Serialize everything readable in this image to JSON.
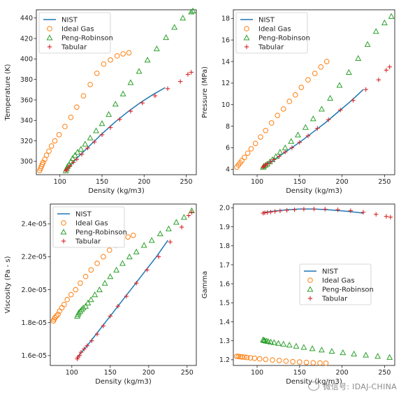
{
  "colors": {
    "nist": "#1f77b4",
    "ideal": "#ff7f0e",
    "pr": "#2ca02c",
    "tab": "#d62728"
  },
  "legend_labels": [
    "NIST",
    "Ideal Gas",
    "Peng-Robinson",
    "Tabular"
  ],
  "watermark": "微信号: IDAJ-CHINA",
  "chart_data": [
    {
      "type": "line",
      "xlabel": "Density (kg/m3)",
      "ylabel": "Temperature (K)",
      "xlim": [
        72,
        262
      ],
      "ylim": [
        287,
        448
      ],
      "xticks": [
        100,
        150,
        200,
        250
      ],
      "yticks": [
        300,
        320,
        340,
        360,
        380,
        400,
        420,
        440
      ],
      "ytick_labels": [
        "300",
        "320",
        "340",
        "360",
        "380",
        "400",
        "420",
        "440"
      ],
      "legend_position": "upper-left",
      "series": [
        {
          "name": "NIST",
          "kind": "line",
          "x": [
            107,
            120,
            135,
            150,
            165,
            180,
            195,
            210,
            225
          ],
          "y": [
            291,
            303,
            315,
            327,
            338,
            348,
            357,
            365,
            372
          ]
        },
        {
          "name": "Ideal Gas",
          "kind": "circle",
          "x": [
            76,
            77,
            78,
            79,
            80,
            82,
            84,
            87,
            90,
            94,
            99,
            106,
            113,
            120,
            128,
            136,
            144,
            152,
            160,
            168,
            175,
            182
          ],
          "y": [
            291,
            293,
            295,
            297,
            299,
            302,
            306,
            310,
            315,
            320,
            326,
            334,
            343,
            353,
            364,
            375,
            386,
            395,
            399,
            403,
            405,
            406
          ]
        },
        {
          "name": "Peng-Robinson",
          "kind": "triangle",
          "x": [
            107,
            108,
            109,
            111,
            113,
            115,
            118,
            121,
            125,
            130,
            136,
            143,
            150,
            158,
            166,
            175,
            184,
            194,
            204,
            215,
            226,
            236,
            246,
            256,
            258
          ],
          "y": [
            291,
            293,
            295,
            297,
            300,
            303,
            306,
            309,
            312,
            317,
            323,
            330,
            337,
            346,
            356,
            366,
            377,
            388,
            399,
            410,
            421,
            431,
            440,
            446,
            447
          ]
        },
        {
          "name": "Tabular",
          "kind": "plus",
          "x": [
            107,
            108,
            110,
            112,
            116,
            120,
            126,
            133,
            141,
            150,
            160,
            171,
            184,
            198,
            213,
            228,
            243,
            252,
            256
          ],
          "y": [
            291,
            292,
            294,
            296,
            299,
            302,
            307,
            313,
            319,
            326,
            333,
            341,
            349,
            357,
            364,
            371,
            378,
            385,
            387
          ]
        }
      ]
    },
    {
      "type": "line",
      "xlabel": "Density (kg/m3)",
      "ylabel": "Pressure (MPa)",
      "xlim": [
        72,
        262
      ],
      "ylim": [
        3.5,
        18.8
      ],
      "xticks": [
        100,
        150,
        200,
        250
      ],
      "yticks": [
        4,
        6,
        8,
        10,
        12,
        14,
        16,
        18
      ],
      "ytick_labels": [
        "4",
        "6",
        "8",
        "10",
        "12",
        "14",
        "16",
        "18"
      ],
      "legend_position": "upper-left",
      "series": [
        {
          "name": "NIST",
          "kind": "line",
          "x": [
            107,
            120,
            135,
            150,
            165,
            180,
            195,
            210,
            225
          ],
          "y": [
            4.2,
            4.9,
            5.7,
            6.5,
            7.4,
            8.3,
            9.3,
            10.3,
            11.4
          ]
        },
        {
          "name": "Ideal Gas",
          "kind": "circle",
          "x": [
            76,
            78,
            80,
            82,
            85,
            89,
            93,
            98,
            104,
            110,
            117,
            124,
            131,
            138,
            145,
            152,
            160,
            168,
            175,
            182
          ],
          "y": [
            4.2,
            4.4,
            4.6,
            4.8,
            5.1,
            5.5,
            5.9,
            6.4,
            7.0,
            7.6,
            8.3,
            9.0,
            9.6,
            10.3,
            10.9,
            11.6,
            12.3,
            12.9,
            13.5,
            14.0
          ]
        },
        {
          "name": "Peng-Robinson",
          "kind": "triangle",
          "x": [
            107,
            108,
            110,
            112,
            115,
            118,
            122,
            127,
            133,
            140,
            148,
            157,
            166,
            176,
            186,
            197,
            208,
            219,
            230,
            240,
            250,
            258
          ],
          "y": [
            4.2,
            4.3,
            4.4,
            4.5,
            4.7,
            4.9,
            5.2,
            5.6,
            6.0,
            6.6,
            7.2,
            7.9,
            8.7,
            9.6,
            10.6,
            11.8,
            13.0,
            14.3,
            15.6,
            16.8,
            17.6,
            18.2
          ]
        },
        {
          "name": "Tabular",
          "kind": "plus",
          "x": [
            107,
            108,
            110,
            112,
            116,
            120,
            126,
            133,
            141,
            150,
            160,
            171,
            184,
            198,
            213,
            228,
            243,
            252,
            256
          ],
          "y": [
            4.2,
            4.3,
            4.4,
            4.5,
            4.7,
            4.9,
            5.2,
            5.6,
            6.0,
            6.5,
            7.1,
            7.8,
            8.6,
            9.5,
            10.4,
            11.4,
            12.3,
            13.2,
            13.5
          ]
        }
      ]
    },
    {
      "type": "line",
      "xlabel": "Density (kg/m3)",
      "ylabel": "Viscosity (Pa - s)",
      "xlim": [
        72,
        262
      ],
      "ylim": [
        1.54e-05,
        2.52e-05
      ],
      "xticks": [
        100,
        150,
        200,
        250
      ],
      "yticks": [
        1.6e-05,
        1.8e-05,
        2e-05,
        2.2e-05,
        2.4e-05
      ],
      "ytick_labels": [
        "1.6e-05",
        "1.8e-05",
        "2.0e-05",
        "2.2e-05",
        "2.4e-05"
      ],
      "legend_position": "upper-left",
      "series": [
        {
          "name": "NIST",
          "kind": "line",
          "x": [
            107,
            120,
            135,
            150,
            165,
            180,
            195,
            210,
            225
          ],
          "y": [
            1.59e-05,
            1.66e-05,
            1.75e-05,
            1.84e-05,
            1.93e-05,
            2.02e-05,
            2.11e-05,
            2.2e-05,
            2.3e-05
          ]
        },
        {
          "name": "Ideal Gas",
          "kind": "circle",
          "x": [
            76,
            77,
            78,
            80,
            82,
            84,
            87,
            90,
            94,
            99,
            105,
            111,
            118,
            125,
            133,
            141,
            149,
            157,
            165,
            173,
            180
          ],
          "y": [
            1.81e-05,
            1.82e-05,
            1.83e-05,
            1.84e-05,
            1.85e-05,
            1.87e-05,
            1.89e-05,
            1.91e-05,
            1.94e-05,
            1.97e-05,
            2e-05,
            2.04e-05,
            2.08e-05,
            2.12e-05,
            2.16e-05,
            2.2e-05,
            2.24e-05,
            2.27e-05,
            2.3e-05,
            2.32e-05,
            2.33e-05
          ]
        },
        {
          "name": "Peng-Robinson",
          "kind": "triangle",
          "x": [
            107,
            108,
            109,
            111,
            113,
            115,
            118,
            121,
            125,
            130,
            136,
            143,
            150,
            158,
            166,
            175,
            184,
            194,
            204,
            215,
            226,
            236,
            246,
            256
          ],
          "y": [
            1.84e-05,
            1.85e-05,
            1.86e-05,
            1.87e-05,
            1.88e-05,
            1.89e-05,
            1.9e-05,
            1.92e-05,
            1.94e-05,
            1.97e-05,
            2e-05,
            2.04e-05,
            2.08e-05,
            2.12e-05,
            2.16e-05,
            2.2e-05,
            2.23e-05,
            2.27e-05,
            2.3e-05,
            2.34e-05,
            2.37e-05,
            2.41e-05,
            2.44e-05,
            2.48e-05
          ]
        },
        {
          "name": "Tabular",
          "kind": "plus",
          "x": [
            107,
            108,
            110,
            112,
            116,
            120,
            126,
            133,
            141,
            150,
            160,
            171,
            184,
            198,
            213,
            228,
            243,
            252,
            256
          ],
          "y": [
            1.58e-05,
            1.59e-05,
            1.6e-05,
            1.62e-05,
            1.64e-05,
            1.66e-05,
            1.69e-05,
            1.73e-05,
            1.78e-05,
            1.84e-05,
            1.9e-05,
            1.96e-05,
            2.04e-05,
            2.12e-05,
            2.2e-05,
            2.29e-05,
            2.38e-05,
            2.45e-05,
            2.47e-05
          ]
        }
      ]
    },
    {
      "type": "line",
      "xlabel": "Density (kg/m3)",
      "ylabel": "Gamma",
      "xlim": [
        72,
        262
      ],
      "ylim": [
        1.17,
        2.02
      ],
      "xticks": [
        100,
        150,
        200,
        250
      ],
      "yticks": [
        1.2,
        1.3,
        1.4,
        1.5,
        1.6,
        1.7,
        1.8,
        1.9,
        2.0
      ],
      "ytick_labels": [
        "1.2",
        "1.3",
        "1.4",
        "1.5",
        "1.6",
        "1.7",
        "1.8",
        "1.9",
        "2.0"
      ],
      "legend_position": "center-right",
      "series": [
        {
          "name": "NIST",
          "kind": "line",
          "x": [
            107,
            120,
            135,
            150,
            165,
            180,
            195,
            210,
            225
          ],
          "y": [
            1.975,
            1.983,
            1.99,
            1.994,
            1.994,
            1.991,
            1.986,
            1.98,
            1.972
          ]
        },
        {
          "name": "Ideal Gas",
          "kind": "circle",
          "x": [
            76,
            78,
            80,
            82,
            85,
            88,
            92,
            97,
            103,
            110,
            118,
            126,
            134,
            142,
            150,
            158,
            166,
            174,
            181
          ],
          "y": [
            1.218,
            1.217,
            1.216,
            1.215,
            1.214,
            1.212,
            1.21,
            1.208,
            1.205,
            1.202,
            1.199,
            1.196,
            1.193,
            1.19,
            1.188,
            1.186,
            1.184,
            1.183,
            1.182
          ]
        },
        {
          "name": "Peng-Robinson",
          "kind": "triangle",
          "x": [
            107,
            108,
            109,
            111,
            113,
            116,
            120,
            125,
            131,
            138,
            146,
            155,
            165,
            176,
            188,
            201,
            214,
            228,
            242,
            256
          ],
          "y": [
            1.305,
            1.303,
            1.301,
            1.299,
            1.297,
            1.294,
            1.291,
            1.287,
            1.283,
            1.278,
            1.272,
            1.266,
            1.259,
            1.252,
            1.245,
            1.238,
            1.231,
            1.225,
            1.219,
            1.213
          ]
        },
        {
          "name": "Tabular",
          "kind": "plus",
          "x": [
            107,
            109,
            112,
            116,
            121,
            127,
            135,
            144,
            155,
            167,
            180,
            195,
            210,
            225,
            240,
            252,
            257
          ],
          "y": [
            1.972,
            1.974,
            1.976,
            1.978,
            1.981,
            1.984,
            1.987,
            1.99,
            1.993,
            1.994,
            1.993,
            1.99,
            1.985,
            1.977,
            1.966,
            1.955,
            1.951
          ]
        }
      ]
    }
  ]
}
